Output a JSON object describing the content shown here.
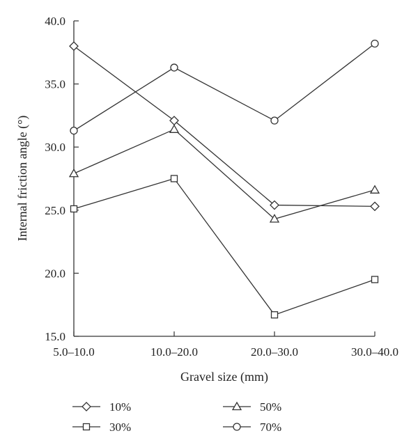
{
  "chart_data": {
    "type": "line",
    "categories": [
      "5.0–10.0",
      "10.0–20.0",
      "20.0–30.0",
      "30.0–40.0"
    ],
    "series": [
      {
        "name": "10%",
        "marker": "diamond",
        "values": [
          38.0,
          32.1,
          25.4,
          25.3
        ]
      },
      {
        "name": "30%",
        "marker": "square",
        "values": [
          25.1,
          27.5,
          16.7,
          19.5
        ]
      },
      {
        "name": "50%",
        "marker": "triangle",
        "values": [
          27.9,
          31.4,
          24.3,
          26.6
        ]
      },
      {
        "name": "70%",
        "marker": "circle",
        "values": [
          31.3,
          36.3,
          32.1,
          38.2
        ]
      }
    ],
    "xlabel": "Gravel size (mm)",
    "ylabel": "Internal friction angle (°)",
    "ylim": [
      15.0,
      40.0
    ],
    "yticks": [
      "15.0",
      "20.0",
      "25.0",
      "30.0",
      "35.0",
      "40.0"
    ],
    "grid": false,
    "legend_position": "bottom",
    "line_color": "#333333"
  }
}
